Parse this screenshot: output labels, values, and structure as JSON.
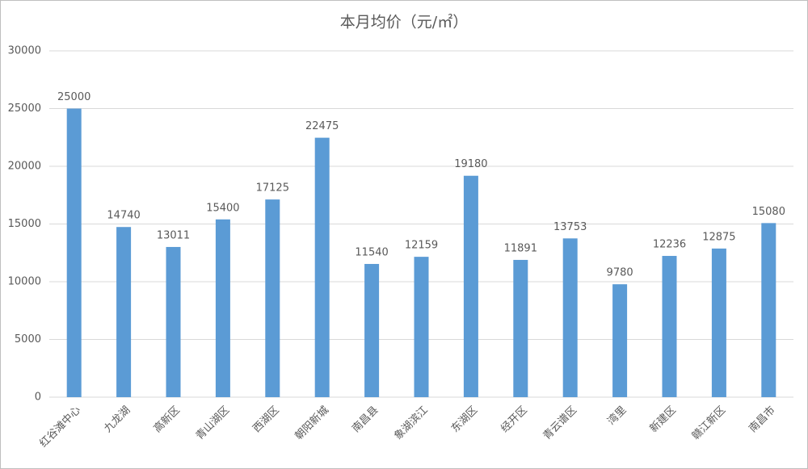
{
  "chart_data": {
    "type": "bar",
    "title": "本月均价（元/㎡）",
    "categories": [
      "红谷滩中心",
      "九龙湖",
      "高新区",
      "青山湖区",
      "西湖区",
      "朝阳新城",
      "南昌县",
      "象湖滨江",
      "东湖区",
      "经开区",
      "青云谱区",
      "湾里",
      "新建区",
      "赣江新区",
      "南昌市"
    ],
    "values": [
      25000,
      14740,
      13011,
      15400,
      17125,
      22475,
      11540,
      12159,
      19180,
      11891,
      13753,
      9780,
      12236,
      12875,
      15080
    ],
    "color": "#5b9bd5",
    "ylim": [
      0,
      30000
    ],
    "yticks": [
      0,
      5000,
      10000,
      15000,
      20000,
      25000,
      30000
    ],
    "grid": true
  }
}
